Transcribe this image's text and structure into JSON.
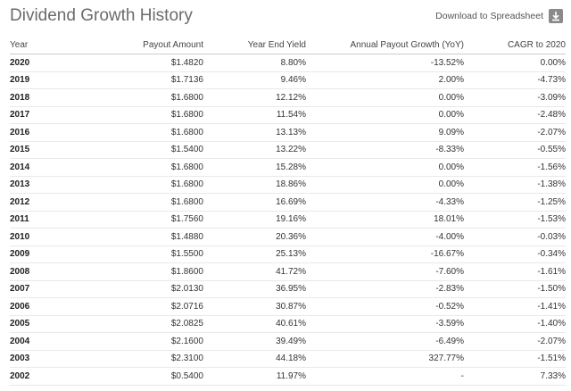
{
  "title": "Dividend Growth History",
  "download_label": "Download to Spreadsheet",
  "columns": [
    "Year",
    "Payout Amount",
    "Year End Yield",
    "Annual Payout Growth (YoY)",
    "CAGR to 2020"
  ],
  "rows": [
    [
      "2020",
      "$1.4820",
      "8.80%",
      "-13.52%",
      "0.00%"
    ],
    [
      "2019",
      "$1.7136",
      "9.46%",
      "2.00%",
      "-4.73%"
    ],
    [
      "2018",
      "$1.6800",
      "12.12%",
      "0.00%",
      "-3.09%"
    ],
    [
      "2017",
      "$1.6800",
      "11.54%",
      "0.00%",
      "-2.48%"
    ],
    [
      "2016",
      "$1.6800",
      "13.13%",
      "9.09%",
      "-2.07%"
    ],
    [
      "2015",
      "$1.5400",
      "13.22%",
      "-8.33%",
      "-0.55%"
    ],
    [
      "2014",
      "$1.6800",
      "15.28%",
      "0.00%",
      "-1.56%"
    ],
    [
      "2013",
      "$1.6800",
      "18.86%",
      "0.00%",
      "-1.38%"
    ],
    [
      "2012",
      "$1.6800",
      "16.69%",
      "-4.33%",
      "-1.25%"
    ],
    [
      "2011",
      "$1.7560",
      "19.16%",
      "18.01%",
      "-1.53%"
    ],
    [
      "2010",
      "$1.4880",
      "20.36%",
      "-4.00%",
      "-0.03%"
    ],
    [
      "2009",
      "$1.5500",
      "25.13%",
      "-16.67%",
      "-0.34%"
    ],
    [
      "2008",
      "$1.8600",
      "41.72%",
      "-7.60%",
      "-1.61%"
    ],
    [
      "2007",
      "$2.0130",
      "36.95%",
      "-2.83%",
      "-1.50%"
    ],
    [
      "2006",
      "$2.0716",
      "30.87%",
      "-0.52%",
      "-1.41%"
    ],
    [
      "2005",
      "$2.0825",
      "40.61%",
      "-3.59%",
      "-1.40%"
    ],
    [
      "2004",
      "$2.1600",
      "39.49%",
      "-6.49%",
      "-2.07%"
    ],
    [
      "2003",
      "$2.3100",
      "44.18%",
      "327.77%",
      "-1.51%"
    ],
    [
      "2002",
      "$0.5400",
      "11.97%",
      "-",
      "7.33%"
    ]
  ]
}
